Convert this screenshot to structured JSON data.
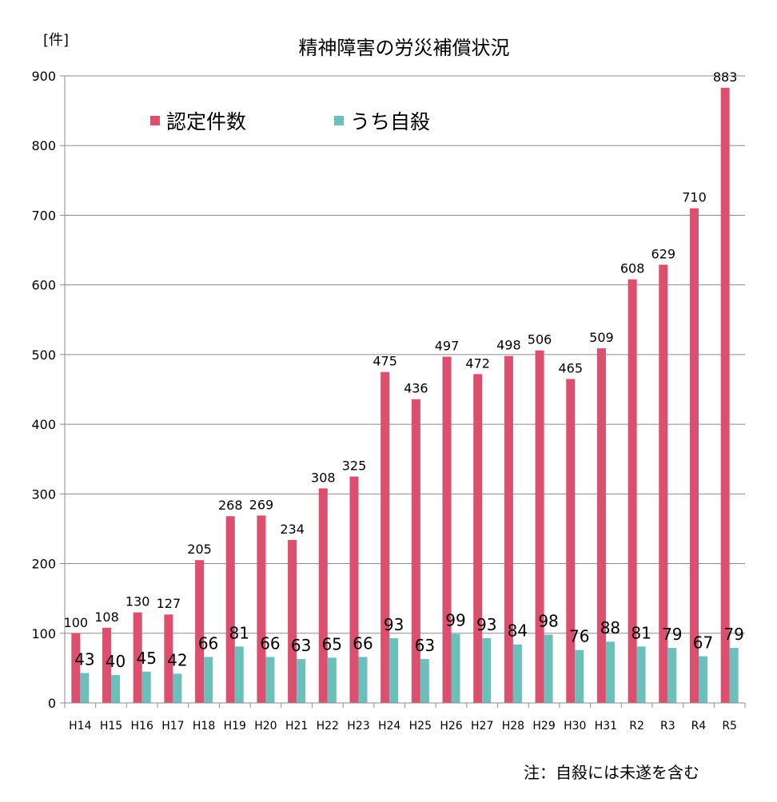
{
  "chart_data": {
    "type": "bar",
    "title": "精神障害の労災補償状況",
    "unit_label": "[件]",
    "note": "注：自殺には未遂を含む",
    "ylim": [
      0,
      900
    ],
    "yticks": [
      0,
      100,
      200,
      300,
      400,
      500,
      600,
      700,
      800,
      900
    ],
    "grid": true,
    "legend_position": "top-left",
    "categories": [
      "H14",
      "H15",
      "H16",
      "H17",
      "H18",
      "H19",
      "H20",
      "H21",
      "H22",
      "H23",
      "H24",
      "H25",
      "H26",
      "H27",
      "H28",
      "H29",
      "H30",
      "H31",
      "R2",
      "R3",
      "R4",
      "R5"
    ],
    "series": [
      {
        "name": "認定件数",
        "color": "#dc4f6e",
        "values": [
          100,
          108,
          130,
          127,
          205,
          268,
          269,
          234,
          308,
          325,
          475,
          436,
          497,
          472,
          498,
          506,
          465,
          509,
          608,
          629,
          710,
          883
        ]
      },
      {
        "name": "うち自殺",
        "color": "#6cc0bb",
        "values": [
          43,
          40,
          45,
          42,
          66,
          81,
          66,
          63,
          65,
          66,
          93,
          63,
          99,
          93,
          84,
          98,
          76,
          88,
          81,
          79,
          67,
          79
        ]
      }
    ]
  }
}
